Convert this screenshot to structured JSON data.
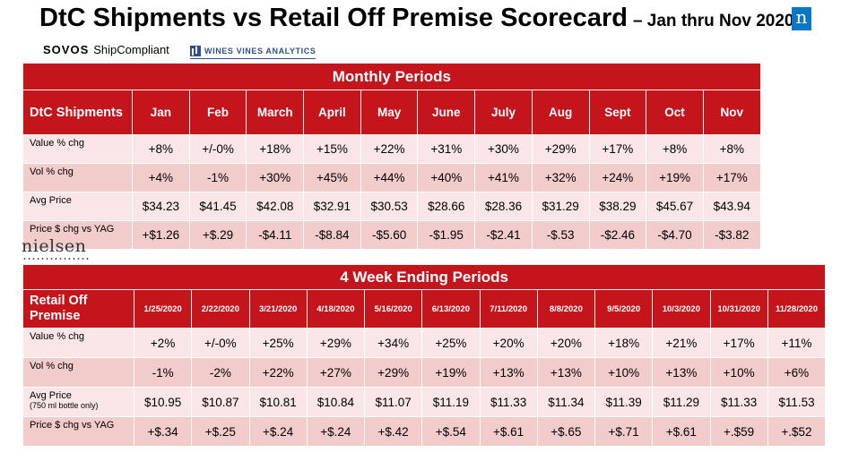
{
  "title": {
    "main": "DtC Shipments vs Retail Off Premise Scorecard",
    "sub": "– Jan thru Nov 2020"
  },
  "logos": {
    "corner_mark": "n",
    "sovos_brand": "SOVOS",
    "sovos_product": "ShipCompliant",
    "wva": "WINES VINES ANALYTICS",
    "nielsen": "nielsen"
  },
  "monthly": {
    "band": "Monthly Periods",
    "header_label": "DtC Shipments",
    "columns": [
      "Jan",
      "Feb",
      "March",
      "April",
      "May",
      "June",
      "July",
      "Aug",
      "Sept",
      "Oct",
      "Nov"
    ],
    "rows": [
      {
        "label": "Value % chg",
        "values": [
          "+8%",
          "+/-0%",
          "+18%",
          "+15%",
          "+22%",
          "+31%",
          "+30%",
          "+29%",
          "+17%",
          "+8%",
          "+8%"
        ]
      },
      {
        "label": "Vol % chg",
        "values": [
          "+4%",
          "-1%",
          "+30%",
          "+45%",
          "+44%",
          "+40%",
          "+41%",
          "+32%",
          "+24%",
          "+19%",
          "+17%"
        ]
      },
      {
        "label": "Avg Price",
        "values": [
          "$34.23",
          "$41.45",
          "$42.08",
          "$32.91",
          "$30.53",
          "$28.66",
          "$28.36",
          "$31.29",
          "$38.29",
          "$45.67",
          "$43.94"
        ]
      },
      {
        "label": "Price $ chg vs YAG",
        "values": [
          "+$1.26",
          "+$.29",
          "-$4.11",
          "-$8.84",
          "-$5.60",
          "-$1.95",
          "-$2.41",
          "-$.53",
          "-$2.46",
          "-$4.70",
          "-$3.82"
        ]
      }
    ]
  },
  "weekly": {
    "band": "4 Week Ending Periods",
    "header_label": "Retail Off Premise",
    "columns": [
      "1/25/2020",
      "2/22/2020",
      "3/21/2020",
      "4/18/2020",
      "5/16/2020",
      "6/13/2020",
      "7/11/2020",
      "8/8/2020",
      "9/5/2020",
      "10/3/2020",
      "10/31/2020",
      "11/28/2020"
    ],
    "rows": [
      {
        "label": "Value % chg",
        "note": "",
        "values": [
          "+2%",
          "+/-0%",
          "+25%",
          "+29%",
          "+34%",
          "+25%",
          "+20%",
          "+20%",
          "+18%",
          "+21%",
          "+17%",
          "+11%"
        ]
      },
      {
        "label": "Vol % chg",
        "note": "",
        "values": [
          "-1%",
          "-2%",
          "+22%",
          "+27%",
          "+29%",
          "+19%",
          "+13%",
          "+13%",
          "+10%",
          "+13%",
          "+10%",
          "+6%"
        ]
      },
      {
        "label": "Avg Price",
        "note": "(750 ml bottle only)",
        "values": [
          "$10.95",
          "$10.87",
          "$10.81",
          "$10.84",
          "$11.07",
          "$11.19",
          "$11.33",
          "$11.34",
          "$11.39",
          "$11.29",
          "$11.33",
          "$11.53"
        ]
      },
      {
        "label": "Price $ chg vs YAG",
        "note": "",
        "values": [
          "+$.34",
          "+$.25",
          "+$.24",
          "+$.24",
          "+$.42",
          "+$.54",
          "+$.61",
          "+$.65",
          "+$.71",
          "+$.61",
          "+.$59",
          "+.$52"
        ]
      }
    ]
  }
}
